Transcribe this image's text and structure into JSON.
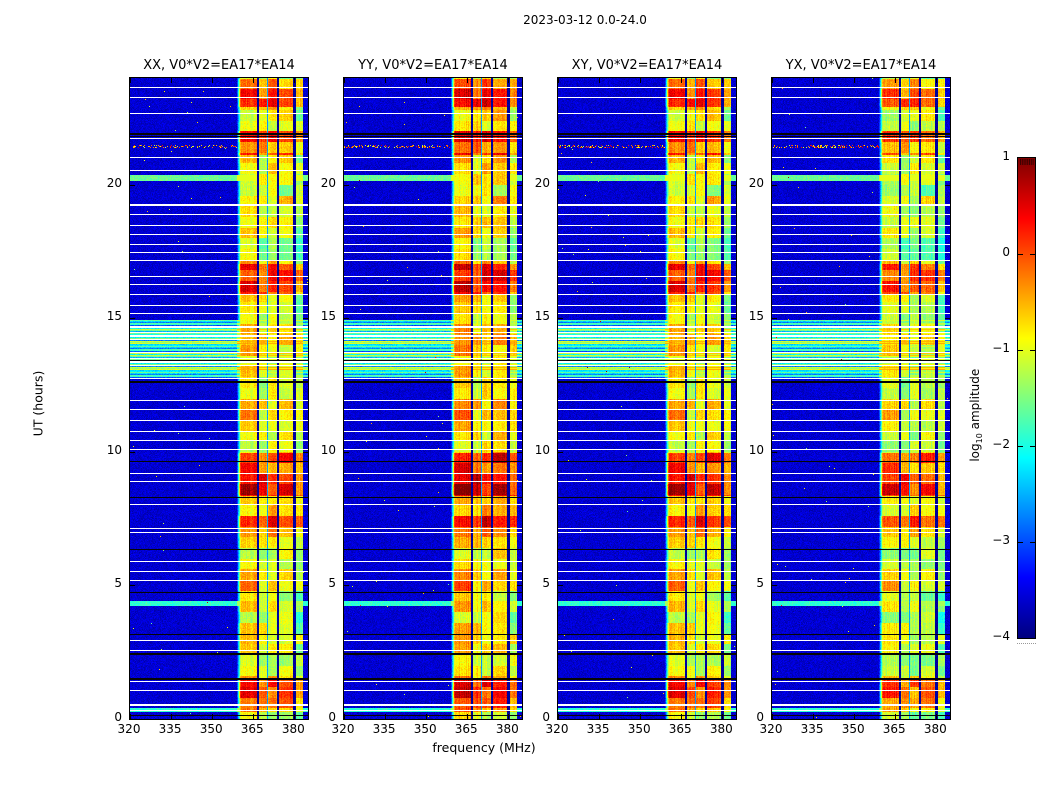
{
  "figure": {
    "title": "2023-03-12 0.0-24.0",
    "background": "#ffffff"
  },
  "axes": {
    "xlabel": "frequency (MHz)",
    "ylabel": "UT (hours)"
  },
  "panels": [
    {
      "title": "XX, V0*V2=EA17*EA14"
    },
    {
      "title": "YY, V0*V2=EA17*EA14"
    },
    {
      "title": "XY, V0*V2=EA17*EA14"
    },
    {
      "title": "YX, V0*V2=EA17*EA14"
    }
  ],
  "colorbar": {
    "label_prefix": "log",
    "label_sub": "10",
    "label_suffix": " amplitude",
    "ticks": [
      "1",
      "0",
      "−1",
      "−2",
      "−3",
      "−4"
    ]
  },
  "chart_data": {
    "type": "heatmap",
    "title": "2023-03-12 0.0-24.0",
    "panels": [
      {
        "label": "XX, V0*V2=EA17*EA14"
      },
      {
        "label": "YY, V0*V2=EA17*EA14"
      },
      {
        "label": "XY, V0*V2=EA17*EA14"
      },
      {
        "label": "YX, V0*V2=EA17*EA14"
      }
    ],
    "x": {
      "label": "frequency (MHz)",
      "range": [
        320,
        385
      ],
      "ticks": [
        320,
        335,
        350,
        365,
        380
      ]
    },
    "y": {
      "label": "UT (hours)",
      "range": [
        0,
        24
      ],
      "ticks": [
        0,
        5,
        10,
        15,
        20
      ]
    },
    "colorbar": {
      "label": "log10 amplitude",
      "colormap": "jet",
      "vmin": -4,
      "vmax": 1,
      "ticks": [
        1,
        0,
        -1,
        -2,
        -3,
        -4
      ]
    },
    "features": {
      "background_level": -3.6,
      "noise_sigma": 0.24,
      "band": {
        "f_start": 360.5,
        "f_end": 383.0,
        "edge_fade_mhz": 1.5,
        "subband_levels": [
          -0.8,
          -1.0,
          -1.0,
          -0.95,
          -1.3
        ],
        "notches": [
          [
            366.3,
            367.1,
            -3.85
          ],
          [
            370.1,
            370.5,
            -2.6
          ],
          [
            373.5,
            374.3,
            -3.85
          ],
          [
            379.7,
            380.5,
            -3.85
          ]
        ]
      },
      "bright_intervals": [
        [
          22.9,
          23.95,
          0.85
        ],
        [
          21.1,
          22.0,
          0.8
        ],
        [
          15.9,
          17.05,
          0.8
        ],
        [
          8.35,
          9.95,
          0.95
        ],
        [
          6.8,
          7.6,
          0.85
        ],
        [
          0.25,
          1.45,
          0.7
        ]
      ],
      "broadband_interval": [
        12.72,
        14.95
      ],
      "white_lines": [
        [
          23.65,
          1
        ],
        [
          23.3,
          1
        ],
        [
          22.7,
          1
        ],
        [
          21.75,
          1
        ],
        [
          21.05,
          1
        ],
        [
          20.55,
          1
        ],
        [
          19.3,
          2
        ],
        [
          18.9,
          1
        ],
        [
          18.5,
          1
        ],
        [
          18.15,
          1
        ],
        [
          17.8,
          1
        ],
        [
          17.5,
          1
        ],
        [
          17.2,
          1
        ],
        [
          16.6,
          1
        ],
        [
          16.3,
          1
        ],
        [
          15.9,
          1
        ],
        [
          15.5,
          1
        ],
        [
          15.2,
          1
        ],
        [
          14.7,
          2
        ],
        [
          11.95,
          1
        ],
        [
          11.6,
          1
        ],
        [
          11.2,
          1
        ],
        [
          10.8,
          1
        ],
        [
          10.45,
          1
        ],
        [
          10.1,
          1
        ],
        [
          9.2,
          1
        ],
        [
          8.9,
          1
        ],
        [
          8.05,
          1
        ],
        [
          7.15,
          1
        ],
        [
          7.0,
          1
        ],
        [
          5.9,
          1
        ],
        [
          5.55,
          1
        ],
        [
          5.2,
          1
        ],
        [
          2.95,
          1
        ],
        [
          2.6,
          1
        ],
        [
          1.42,
          1
        ],
        [
          1.1,
          1
        ],
        [
          0.55,
          2
        ],
        [
          0.35,
          1
        ]
      ],
      "black_lines": [
        [
          21.95,
          2
        ],
        [
          21.82,
          1
        ],
        [
          13.45,
          1
        ],
        [
          12.65,
          2
        ],
        [
          9.65,
          1
        ],
        [
          8.3,
          1
        ],
        [
          6.35,
          1
        ],
        [
          4.75,
          1
        ],
        [
          3.2,
          1
        ],
        [
          2.47,
          2
        ],
        [
          1.52,
          2
        ],
        [
          0.15,
          1
        ]
      ],
      "cyan_rows": [
        [
          20.25,
          0.1,
          -1.6
        ],
        [
          4.32,
          0.1,
          -1.9
        ],
        [
          0.33,
          0.08,
          -1.9
        ]
      ],
      "speckle_row": {
        "hour": 21.45,
        "f_max": 359
      },
      "panel_offsets": [
        0,
        0.22,
        0.02,
        -0.18
      ],
      "block_hours": 0.4
    }
  }
}
